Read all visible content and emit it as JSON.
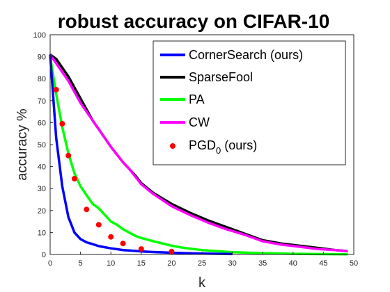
{
  "chart_data": {
    "type": "line",
    "title": "robust accuracy on CIFAR-10",
    "xlabel": "k",
    "ylabel": "accuracy %",
    "xlim": [
      0,
      50
    ],
    "ylim": [
      0,
      100
    ],
    "xticks": [
      0,
      5,
      10,
      15,
      20,
      25,
      30,
      35,
      40,
      45,
      50
    ],
    "yticks": [
      0,
      10,
      20,
      30,
      40,
      50,
      60,
      70,
      80,
      90,
      100
    ],
    "grid": false,
    "legend_position": "top-right",
    "series": [
      {
        "name": "CornerSearch (ours)",
        "color": "#0000ff",
        "style": "line",
        "x": [
          0,
          1,
          2,
          3,
          4,
          5,
          6,
          7,
          8,
          9,
          10,
          11,
          12,
          13,
          14,
          15,
          17,
          20,
          25,
          30
        ],
        "y": [
          91,
          53,
          31,
          17,
          10,
          7,
          5.5,
          4.7,
          3.8,
          3.3,
          2.8,
          2.4,
          2.0,
          1.8,
          1.6,
          1.4,
          1.1,
          0.8,
          0.4,
          0.2
        ]
      },
      {
        "name": "SparseFool",
        "color": "#000000",
        "style": "line",
        "x": [
          0,
          1,
          2,
          3,
          4,
          5,
          6,
          7,
          8,
          9,
          10,
          11,
          12,
          13,
          14,
          15,
          17,
          20,
          23,
          26,
          29,
          32,
          35,
          38,
          41,
          44,
          47,
          49
        ],
        "y": [
          91,
          89,
          85,
          81,
          76,
          71,
          66,
          61,
          57,
          53,
          49,
          45.5,
          42,
          39,
          36,
          32.5,
          28,
          23,
          19,
          15.5,
          12.5,
          9.5,
          6.5,
          5,
          4,
          3,
          2,
          1.5
        ]
      },
      {
        "name": "PA",
        "color": "#00ff00",
        "style": "line",
        "x": [
          0,
          1,
          2,
          3,
          4,
          5,
          6,
          7,
          8,
          9,
          10,
          11,
          12,
          13,
          14,
          15,
          17,
          20,
          22,
          25,
          30,
          35,
          40,
          49
        ],
        "y": [
          90,
          73,
          58,
          46,
          37,
          31,
          27,
          23,
          21,
          18,
          15,
          13.5,
          11.5,
          10,
          8.5,
          7.5,
          6,
          4,
          3,
          2,
          1,
          0.6,
          0.3,
          0.1
        ]
      },
      {
        "name": "CW",
        "color": "#ff00ff",
        "style": "line",
        "x": [
          0,
          1,
          2,
          3,
          4,
          5,
          6,
          7,
          8,
          9,
          10,
          11,
          12,
          13,
          14,
          15,
          17,
          20,
          23,
          26,
          29,
          32,
          35,
          38,
          41,
          44,
          47,
          49
        ],
        "y": [
          91,
          87,
          83,
          79,
          74,
          69,
          65,
          61,
          57,
          53,
          49,
          45.5,
          42,
          39,
          35.5,
          32,
          27.5,
          22,
          18,
          14.5,
          11.5,
          9,
          6,
          4.5,
          3.5,
          2.5,
          2,
          1.5
        ]
      },
      {
        "name": "PGD0 (ours)",
        "color": "#ff0000",
        "style": "scatter",
        "x": [
          1,
          2,
          3,
          4,
          6,
          8,
          10,
          12,
          15,
          20
        ],
        "y": [
          75,
          59.5,
          45,
          34.5,
          20.5,
          13.5,
          8,
          5,
          2.5,
          1.3
        ]
      }
    ],
    "legend": {
      "cornersearch_label": "CornerSearch (ours)",
      "sparsefool_label": "SparseFool",
      "pa_label": "PA",
      "cw_label": "CW",
      "pgd_label_main": "PGD",
      "pgd_label_sub": "0",
      "pgd_label_suffix": " (ours)"
    }
  }
}
